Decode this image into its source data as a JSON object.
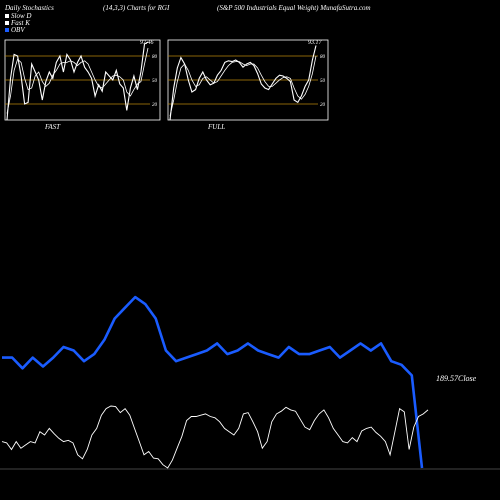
{
  "header": {
    "left": "Daily Stochastics",
    "middle": "(14,3,3) Charts for RGI",
    "right": "(S&ampP 500  Industrials Equal Weight) MunafaSutra.com"
  },
  "legend": [
    {
      "label": "Slow  D",
      "color": "#ffffff"
    },
    {
      "label": "Fast K",
      "color": "#ffffff"
    },
    {
      "label": "OBV",
      "color": "#1a5cff"
    }
  ],
  "panels": [
    {
      "name": "FAST",
      "last_value": "97.46",
      "levels": [
        80,
        50,
        20
      ],
      "k": [
        0,
        52,
        82,
        80,
        55,
        20,
        22,
        70,
        60,
        50,
        25,
        48,
        60,
        52,
        72,
        80,
        60,
        82,
        75,
        60,
        72,
        80,
        66,
        60,
        52,
        30,
        44,
        36,
        60,
        55,
        50,
        62,
        45,
        40,
        12,
        40,
        55,
        38,
        60,
        95,
        97.46
      ],
      "d": [
        8,
        30,
        62,
        76,
        72,
        52,
        38,
        40,
        55,
        60,
        48,
        42,
        46,
        56,
        62,
        70,
        72,
        72,
        74,
        72,
        68,
        72,
        74,
        70,
        60,
        50,
        42,
        40,
        45,
        50,
        55,
        56,
        54,
        50,
        35,
        30,
        38,
        45,
        48,
        70,
        90
      ]
    },
    {
      "name": "FULL",
      "last_value": "93.17",
      "levels": [
        80,
        50,
        20
      ],
      "k": [
        0,
        40,
        65,
        78,
        70,
        50,
        35,
        38,
        52,
        60,
        50,
        44,
        46,
        56,
        62,
        72,
        74,
        73,
        75,
        72,
        66,
        70,
        72,
        68,
        58,
        45,
        40,
        38,
        45,
        52,
        56,
        55,
        52,
        48,
        25,
        22,
        30,
        42,
        50,
        75,
        93.17
      ],
      "d": [
        5,
        25,
        48,
        65,
        70,
        62,
        50,
        42,
        44,
        52,
        54,
        50,
        46,
        48,
        55,
        62,
        68,
        72,
        73,
        73,
        70,
        68,
        70,
        70,
        65,
        56,
        48,
        42,
        42,
        46,
        50,
        53,
        54,
        52,
        40,
        30,
        26,
        32,
        42,
        58,
        80
      ]
    }
  ],
  "obv": {
    "color": "#1a5cff",
    "values": [
      62,
      62,
      56,
      62,
      57,
      62,
      68,
      66,
      60,
      64,
      72,
      84,
      90,
      96,
      92,
      84,
      66,
      60,
      62,
      64,
      66,
      70,
      64,
      66,
      70,
      66,
      64,
      62,
      68,
      64,
      64,
      66,
      68,
      62,
      66,
      70,
      66,
      70,
      60,
      58,
      52,
      0
    ]
  },
  "price": {
    "label": "189.57",
    "label_suffix": "Close",
    "values": [
      40,
      38,
      28,
      40,
      30,
      35,
      40,
      38,
      55,
      50,
      60,
      52,
      45,
      40,
      42,
      38,
      20,
      14,
      28,
      50,
      60,
      80,
      90,
      94,
      93,
      84,
      90,
      80,
      60,
      40,
      20,
      25,
      15,
      14,
      5,
      0,
      12,
      30,
      48,
      72,
      78,
      78,
      80,
      82,
      78,
      76,
      70,
      60,
      55,
      50,
      60,
      82,
      84,
      70,
      55,
      30,
      40,
      70,
      82,
      86,
      92,
      88,
      86,
      74,
      62,
      58,
      72,
      82,
      88,
      76,
      60,
      50,
      40,
      38,
      46,
      40,
      56,
      60,
      62,
      54,
      48,
      40,
      20,
      55,
      90,
      85,
      28,
      62,
      78,
      82,
      88
    ]
  }
}
